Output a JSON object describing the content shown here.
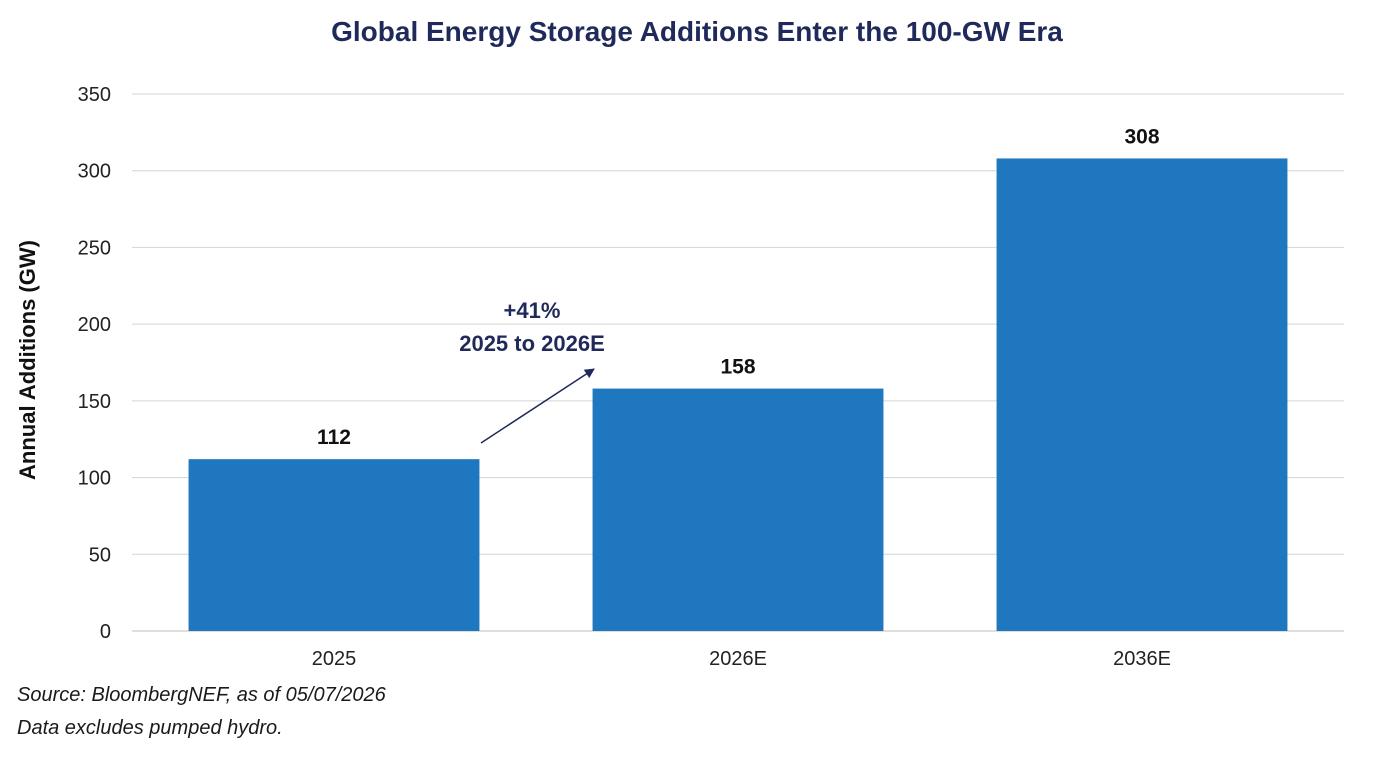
{
  "chart_data": {
    "type": "bar",
    "title": "Global Energy Storage Additions Enter the 100-GW Era",
    "ylabel": "Annual Additions (GW)",
    "xlabel": "",
    "categories": [
      "2025",
      "2026E",
      "2036E"
    ],
    "values": [
      112,
      158,
      308
    ],
    "data_labels": [
      "112",
      "158",
      "308"
    ],
    "ylim": [
      0,
      350
    ],
    "yticks": [
      0,
      50,
      100,
      150,
      200,
      250,
      300,
      350
    ],
    "grid": true,
    "legend": "none",
    "bar_color": "#1f78bf",
    "annotation": {
      "line1": "+41%",
      "line2": "2025 to 2026E",
      "color": "#1f2a5a"
    }
  },
  "footnotes": {
    "source": "Source: BloombergNEF, as of 05/07/2026",
    "note": "Data excludes pumped hydro."
  }
}
